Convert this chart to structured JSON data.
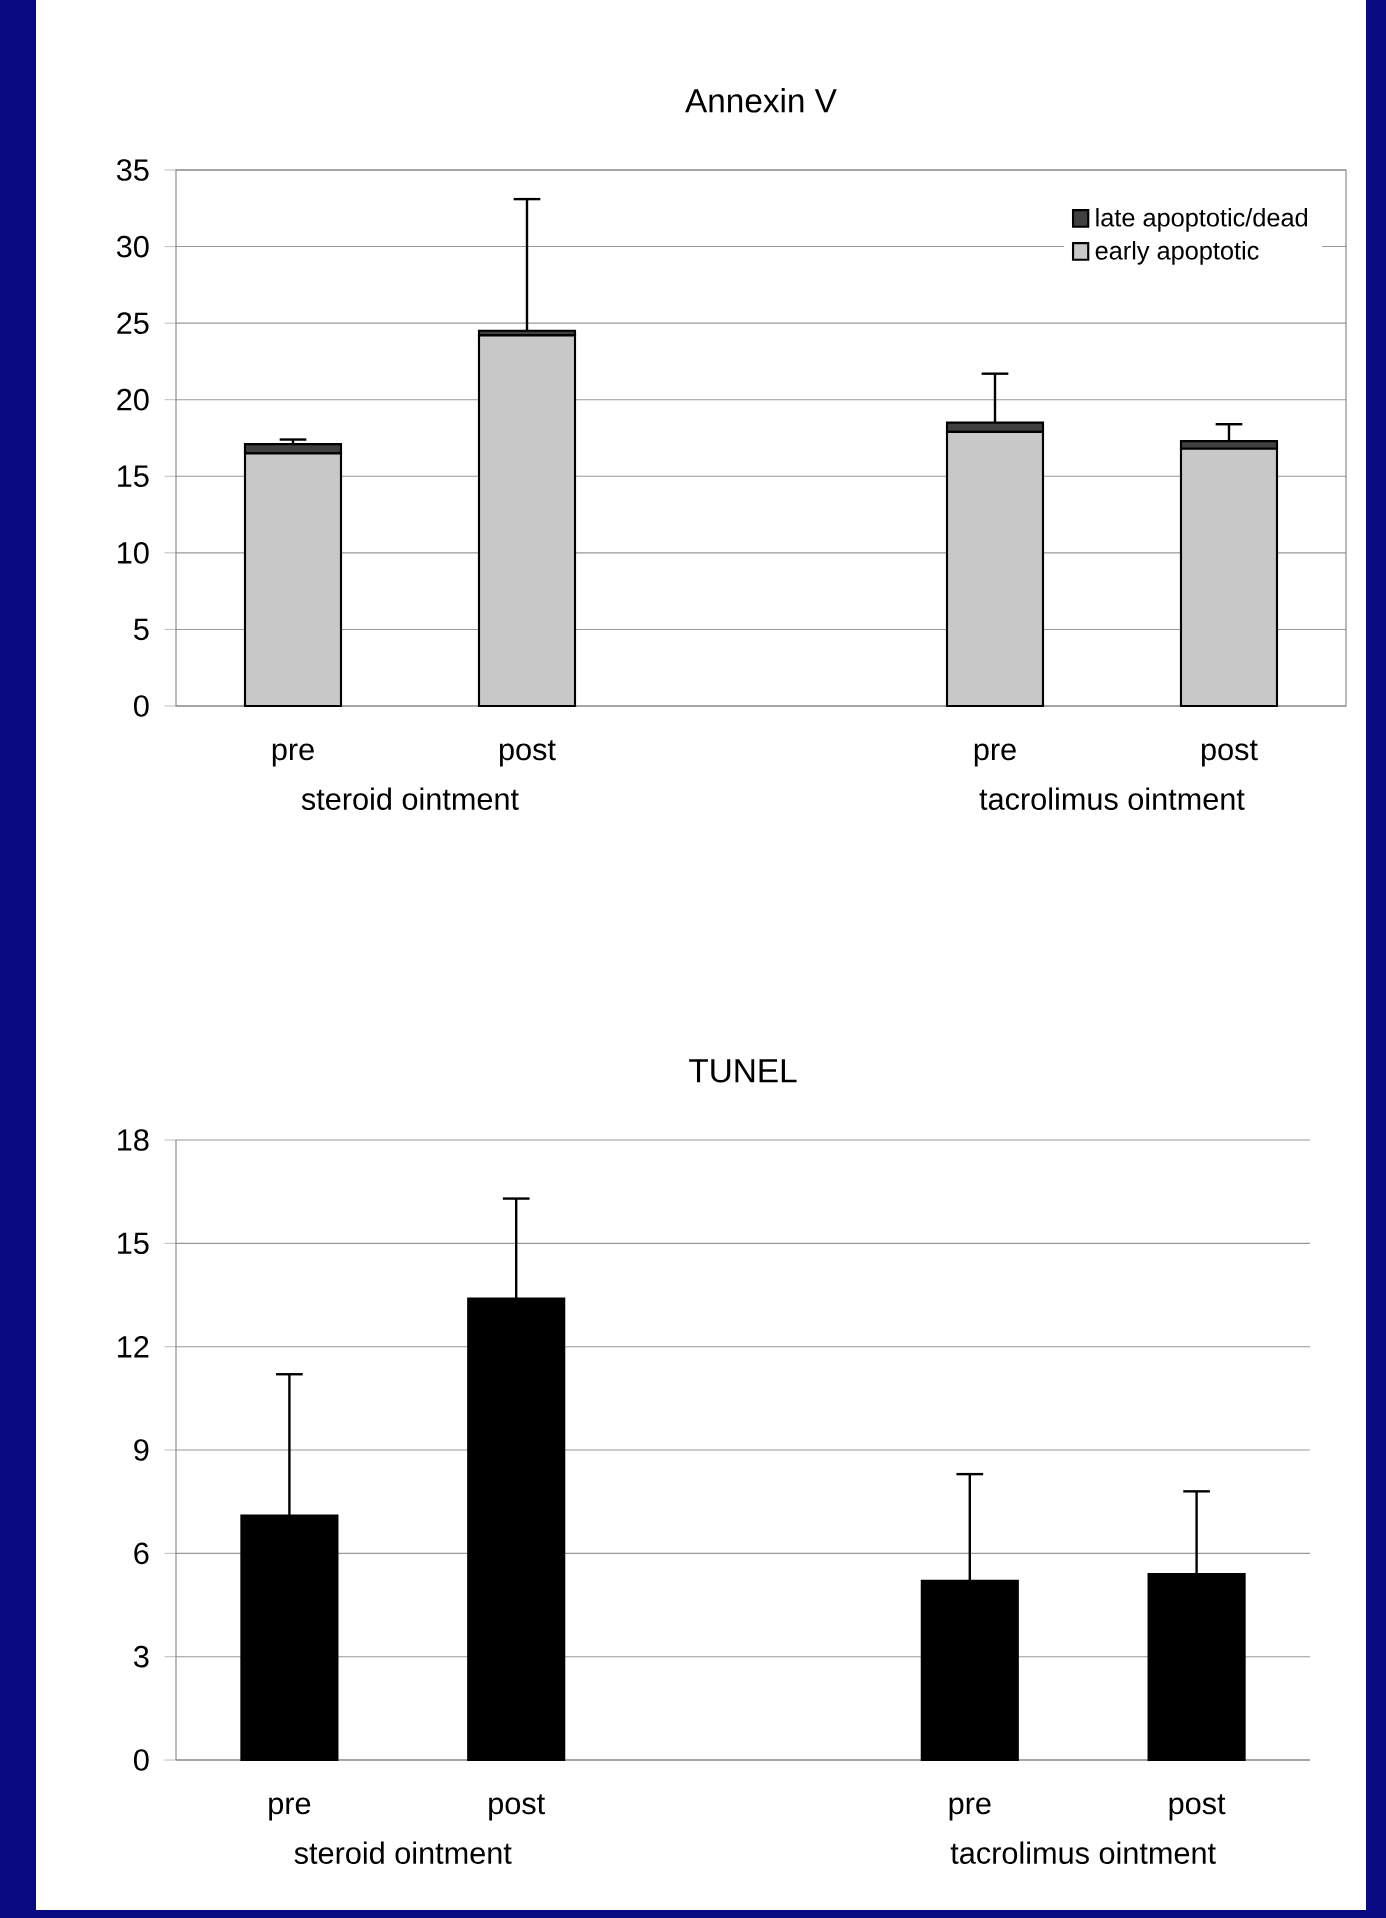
{
  "chart_data": [
    {
      "type": "bar",
      "title": "Annexin V",
      "categories": [
        "pre",
        "post",
        null,
        "pre",
        "post"
      ],
      "stacked": true,
      "series": [
        {
          "name": "early apoptotic",
          "color": "#c8c8c8",
          "values": [
            16.5,
            24.2,
            null,
            17.9,
            16.8
          ]
        },
        {
          "name": "late apoptotic/dead",
          "color": "#404040",
          "values": [
            0.6,
            0.3,
            null,
            0.6,
            0.5
          ],
          "errors": [
            [
              17.1,
              17.4
            ],
            [
              24.5,
              33.1
            ],
            null,
            [
              18.5,
              21.7
            ],
            [
              17.3,
              18.4
            ]
          ]
        }
      ],
      "ylim": [
        0,
        35
      ],
      "yticks": [
        0,
        5,
        10,
        15,
        20,
        25,
        30,
        35
      ],
      "grid": "y",
      "legend": "top right",
      "annotations": [
        "steroid ointment",
        "tacrolimus ointment"
      ]
    },
    {
      "type": "bar",
      "title": "TUNEL",
      "categories": [
        "pre",
        "post",
        null,
        "pre",
        "post"
      ],
      "values": [
        7.1,
        13.4,
        null,
        5.2,
        5.4
      ],
      "color": "#000000",
      "errors": [
        [
          7.1,
          11.2
        ],
        [
          13.4,
          16.3
        ],
        null,
        [
          5.2,
          8.3
        ],
        [
          5.4,
          7.8
        ]
      ],
      "ylim": [
        0,
        18
      ],
      "yticks": [
        0,
        3,
        6,
        9,
        12,
        15,
        18
      ],
      "grid": "y",
      "annotations": [
        "steroid ointment",
        "tacrolimus ointment"
      ]
    }
  ]
}
